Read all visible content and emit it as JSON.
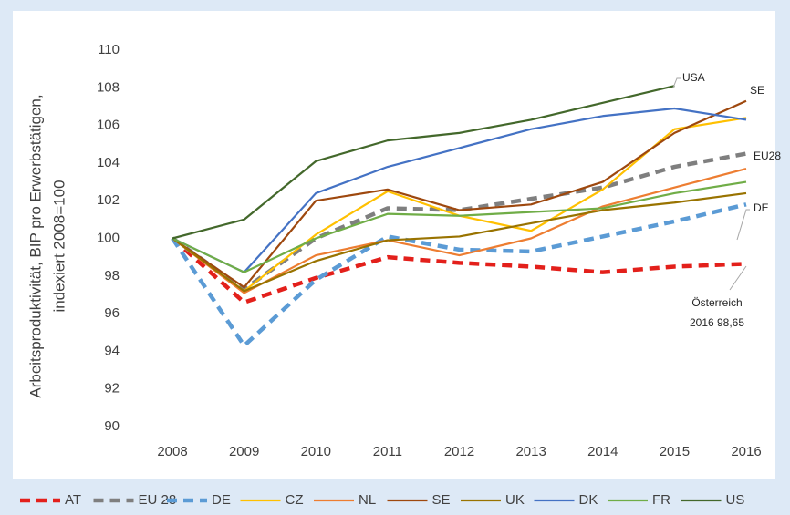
{
  "chart_data": {
    "type": "line",
    "y_label": [
      "Arbeitsproduktivität, BIP pro Erwerbstätigen,",
      "indexiert 2008=100"
    ],
    "categories": [
      "2008",
      "2009",
      "2010",
      "2011",
      "2012",
      "2013",
      "2014",
      "2015",
      "2016"
    ],
    "ylim": [
      90,
      110
    ],
    "yticks": [
      90,
      92,
      94,
      96,
      98,
      100,
      102,
      104,
      106,
      108,
      110
    ],
    "grid": false,
    "legend": "bottom",
    "series": [
      {
        "name": "AT",
        "color": "#e3201b",
        "dashed": true,
        "values": [
          100,
          96.6,
          97.9,
          99.0,
          98.7,
          98.5,
          98.2,
          98.5,
          98.65
        ]
      },
      {
        "name": "EU 28",
        "color": "#7f7f7f",
        "dashed": true,
        "values": [
          100,
          97.3,
          100.0,
          101.6,
          101.5,
          102.1,
          102.7,
          103.8,
          104.5
        ]
      },
      {
        "name": "DE",
        "color": "#5b9bd5",
        "dashed": true,
        "values": [
          100,
          94.3,
          97.8,
          100.1,
          99.4,
          99.3,
          100.1,
          100.9,
          101.8
        ]
      },
      {
        "name": "CZ",
        "color": "#ffc000",
        "dashed": false,
        "values": [
          100,
          97.2,
          100.2,
          102.5,
          101.2,
          100.4,
          102.6,
          105.8,
          106.4
        ]
      },
      {
        "name": "NL",
        "color": "#ed7d31",
        "dashed": false,
        "values": [
          100,
          97.1,
          99.1,
          99.9,
          99.1,
          100.0,
          101.7,
          102.7,
          103.7
        ]
      },
      {
        "name": "SE",
        "color": "#9e480e",
        "dashed": false,
        "values": [
          100,
          97.4,
          102.0,
          102.6,
          101.5,
          101.8,
          103.0,
          105.6,
          107.3
        ]
      },
      {
        "name": "UK",
        "color": "#997300",
        "dashed": false,
        "values": [
          100,
          97.2,
          98.8,
          99.9,
          100.1,
          100.8,
          101.5,
          101.9,
          102.4
        ]
      },
      {
        "name": "DK",
        "color": "#4472c4",
        "dashed": false,
        "values": [
          100,
          98.2,
          102.4,
          103.8,
          104.8,
          105.8,
          106.5,
          106.9,
          106.3
        ]
      },
      {
        "name": "FR",
        "color": "#70ad47",
        "dashed": false,
        "values": [
          100,
          98.2,
          100.0,
          101.3,
          101.2,
          101.4,
          101.6,
          102.4,
          103.0
        ]
      },
      {
        "name": "US",
        "color": "#43682b",
        "dashed": false,
        "values": [
          100,
          101.0,
          104.1,
          105.2,
          105.6,
          106.3,
          107.2,
          108.1,
          null
        ]
      }
    ],
    "annotations": [
      "USA",
      "SE",
      "EU28",
      "DE",
      "Österreich",
      "2016 98,65"
    ]
  }
}
